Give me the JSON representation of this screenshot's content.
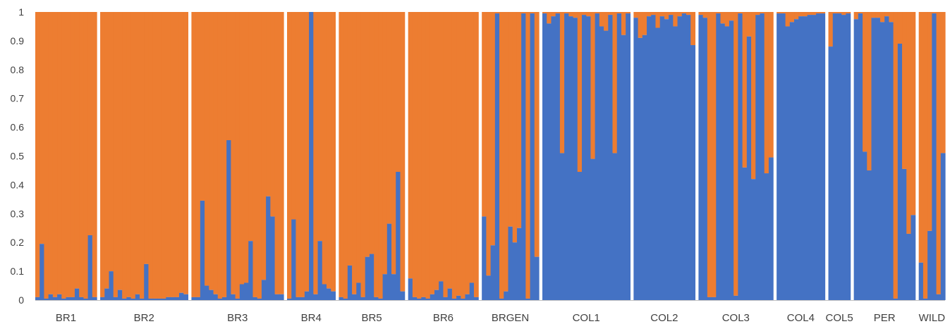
{
  "chart_data": {
    "type": "bar",
    "stacked": true,
    "ylim": [
      0,
      1
    ],
    "yticks": [
      "0",
      "0.1",
      "0.2",
      "0.3",
      "0.4",
      "0.5",
      "0.6",
      "0.7",
      "0.8",
      "0.9",
      "1"
    ],
    "grid": false,
    "legend": "none",
    "colors": {
      "lower": "#4472C4",
      "upper": "#ED7D31",
      "separator": "#ffffff"
    },
    "groups": [
      {
        "label": "BR1",
        "values": [
          0.01,
          0.195,
          0.005,
          0.02,
          0.01,
          0.02,
          0.005,
          0.01,
          0.01,
          0.04,
          0.01,
          0.005,
          0.225,
          0.01
        ]
      },
      {
        "label": "BR2",
        "values": [
          0.01,
          0.04,
          0.1,
          0.01,
          0.035,
          0.005,
          0.01,
          0.005,
          0.02,
          0.005,
          0.125,
          0.005,
          0.005,
          0.005,
          0.005,
          0.01,
          0.01,
          0.01,
          0.025,
          0.02
        ]
      },
      {
        "label": "BR3",
        "values": [
          0.01,
          0.01,
          0.345,
          0.05,
          0.035,
          0.02,
          0.005,
          0.01,
          0.555,
          0.02,
          0.005,
          0.055,
          0.06,
          0.205,
          0.01,
          0.005,
          0.07,
          0.36,
          0.29,
          0.02,
          0.02
        ]
      },
      {
        "label": "BR4",
        "values": [
          0.005,
          0.28,
          0.01,
          0.01,
          0.03,
          1.0,
          0.02,
          0.205,
          0.055,
          0.04,
          0.03
        ]
      },
      {
        "label": "BR5",
        "values": [
          0.01,
          0.005,
          0.12,
          0.02,
          0.06,
          0.01,
          0.15,
          0.16,
          0.01,
          0.005,
          0.09,
          0.265,
          0.09,
          0.445,
          0.03
        ]
      },
      {
        "label": "BR6",
        "values": [
          0.075,
          0.01,
          0.005,
          0.01,
          0.005,
          0.02,
          0.035,
          0.065,
          0.01,
          0.04,
          0.005,
          0.015,
          0.005,
          0.02,
          0.06,
          0.01
        ]
      },
      {
        "label": "BRGEN",
        "values": [
          0.29,
          0.085,
          0.19,
          0.995,
          0.005,
          0.03,
          0.255,
          0.2,
          0.25,
          0.995,
          0.005,
          0.995,
          0.15
        ]
      },
      {
        "label": "COL1",
        "values": [
          0.995,
          0.96,
          0.985,
          0.995,
          0.51,
          0.995,
          0.985,
          0.98,
          0.445,
          0.99,
          0.985,
          0.49,
          0.995,
          0.95,
          0.935,
          0.99,
          0.51,
          0.995,
          0.92,
          0.995
        ]
      },
      {
        "label": "COL2",
        "values": [
          0.98,
          0.91,
          0.92,
          0.985,
          0.99,
          0.945,
          0.985,
          0.975,
          0.99,
          0.95,
          0.985,
          0.995,
          0.99,
          0.885
        ]
      },
      {
        "label": "COL3",
        "values": [
          0.99,
          0.98,
          0.01,
          0.01,
          0.995,
          0.96,
          0.95,
          0.97,
          0.015,
          0.995,
          0.46,
          0.915,
          0.42,
          0.99,
          0.995,
          0.44,
          0.495
        ]
      },
      {
        "label": "COL4",
        "values": [
          0.995,
          0.995,
          0.95,
          0.965,
          0.975,
          0.985,
          0.985,
          0.99,
          0.99,
          0.995,
          0.995
        ]
      },
      {
        "label": "COL5",
        "values": [
          0.88,
          0.995,
          0.995,
          0.99,
          0.995
        ]
      },
      {
        "label": "PER",
        "values": [
          0.975,
          0.995,
          0.515,
          0.45,
          0.98,
          0.98,
          0.965,
          0.985,
          0.965,
          0.005,
          0.89,
          0.455,
          0.23,
          0.295
        ]
      },
      {
        "label": "WILD",
        "values": [
          0.13,
          0.005,
          0.24,
          0.995,
          0.02,
          0.51
        ]
      }
    ]
  }
}
